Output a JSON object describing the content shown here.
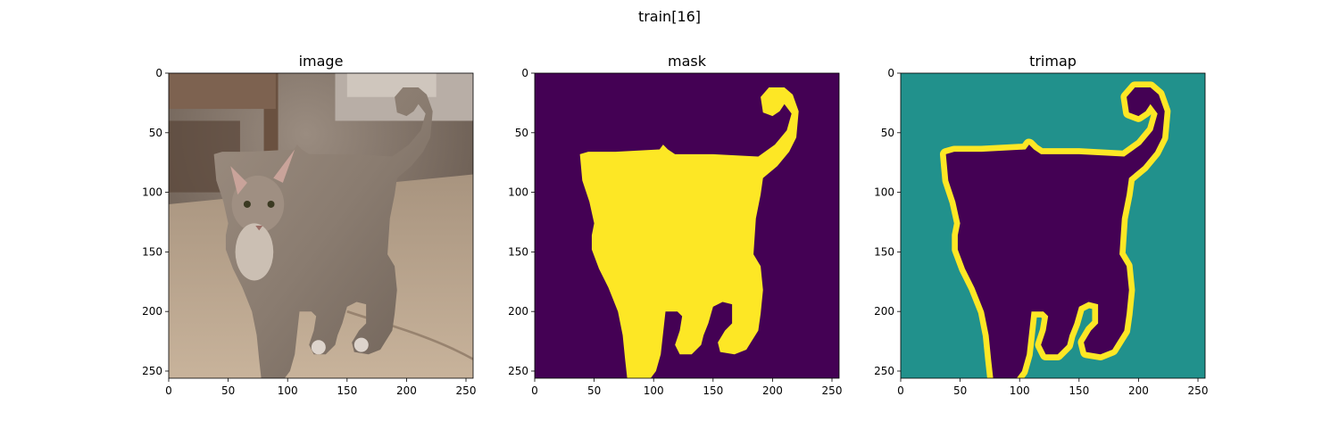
{
  "suptitle": "train[16]",
  "chart_data": [
    {
      "type": "image",
      "title": "image",
      "xlim": [
        0,
        255
      ],
      "ylim": [
        255,
        0
      ],
      "xticks": [
        0,
        50,
        100,
        150,
        200,
        250
      ],
      "yticks": [
        0,
        50,
        100,
        150,
        200,
        250
      ],
      "content": "photo of a grey-brown cat standing on a carpet, tail raised"
    },
    {
      "type": "heatmap",
      "title": "mask",
      "xlim": [
        0,
        255
      ],
      "ylim": [
        255,
        0
      ],
      "xticks": [
        0,
        50,
        100,
        150,
        200,
        250
      ],
      "yticks": [
        0,
        50,
        100,
        150,
        200,
        250
      ],
      "classes": [
        {
          "value": 0,
          "color": "#440154"
        },
        {
          "value": 1,
          "color": "#fde725"
        }
      ]
    },
    {
      "type": "heatmap",
      "title": "trimap",
      "xlim": [
        0,
        255
      ],
      "ylim": [
        255,
        0
      ],
      "xticks": [
        0,
        50,
        100,
        150,
        200,
        250
      ],
      "yticks": [
        0,
        50,
        100,
        150,
        200,
        250
      ],
      "classes": [
        {
          "value": 0,
          "color": "#440154"
        },
        {
          "value": 1,
          "color": "#21918c"
        },
        {
          "value": 2,
          "color": "#fde725"
        }
      ]
    }
  ]
}
